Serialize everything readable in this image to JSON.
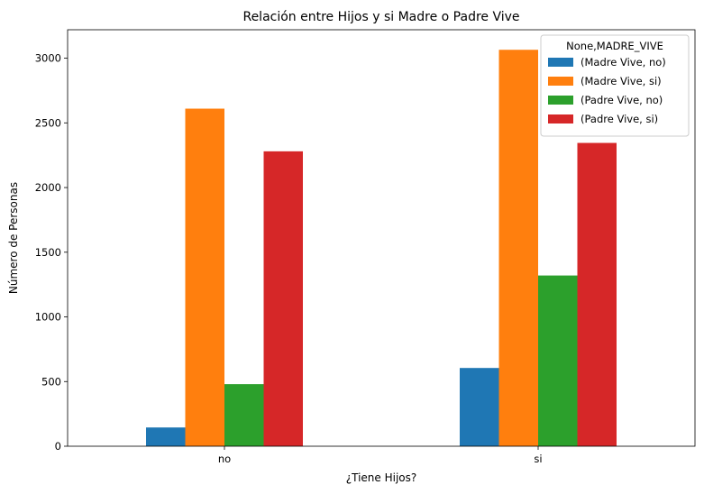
{
  "chart_data": {
    "type": "bar",
    "title": "Relación entre Hijos y si Madre o Padre Vive",
    "xlabel": "¿Tiene Hijos?",
    "ylabel": "Número de Personas",
    "categories": [
      "no",
      "si"
    ],
    "ylim": [
      0,
      3220
    ],
    "yticks": [
      0,
      500,
      1000,
      1500,
      2000,
      2500,
      3000
    ],
    "grid": false,
    "legend": {
      "title": "None,MADRE_VIVE",
      "placement": "top-right"
    },
    "series": [
      {
        "name": "(Madre Vive, no)",
        "color": "#1f77b4",
        "values": [
          145,
          605
        ]
      },
      {
        "name": "(Madre Vive, si)",
        "color": "#ff7f0e",
        "values": [
          2610,
          3065
        ]
      },
      {
        "name": "(Padre Vive, no)",
        "color": "#2ca02c",
        "values": [
          480,
          1320
        ]
      },
      {
        "name": "(Padre Vive, si)",
        "color": "#d62728",
        "values": [
          2280,
          2345
        ]
      }
    ]
  }
}
